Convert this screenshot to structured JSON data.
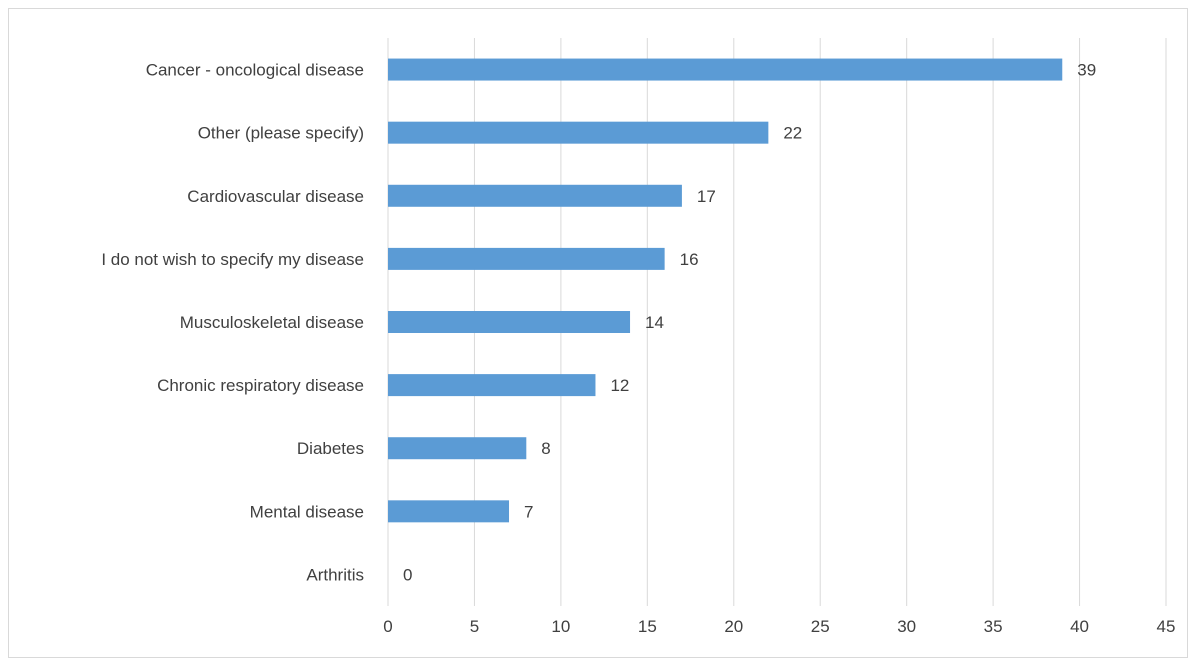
{
  "chart_data": {
    "type": "bar",
    "orientation": "horizontal",
    "categories": [
      "Cancer - oncological disease",
      "Other (please specify)",
      "Cardiovascular disease",
      "I do not wish to specify my disease",
      "Musculoskeletal disease",
      "Chronic respiratory disease",
      "Diabetes",
      "Mental disease",
      "Arthritis"
    ],
    "values": [
      39,
      22,
      17,
      16,
      14,
      12,
      8,
      7,
      0
    ],
    "value_labels": [
      "39",
      "22",
      "17",
      "16",
      "14",
      "12",
      "8",
      "7",
      "0"
    ],
    "x_ticks": [
      "0",
      "5",
      "10",
      "15",
      "20",
      "25",
      "30",
      "35",
      "40",
      "45"
    ],
    "xlim": [
      0,
      45
    ],
    "title": "",
    "xlabel": "",
    "ylabel": "",
    "grid": "vertical",
    "legend": "none",
    "bar_color": "#5b9bd5",
    "grid_color": "#d9d9d9",
    "text_color": "#404040"
  }
}
